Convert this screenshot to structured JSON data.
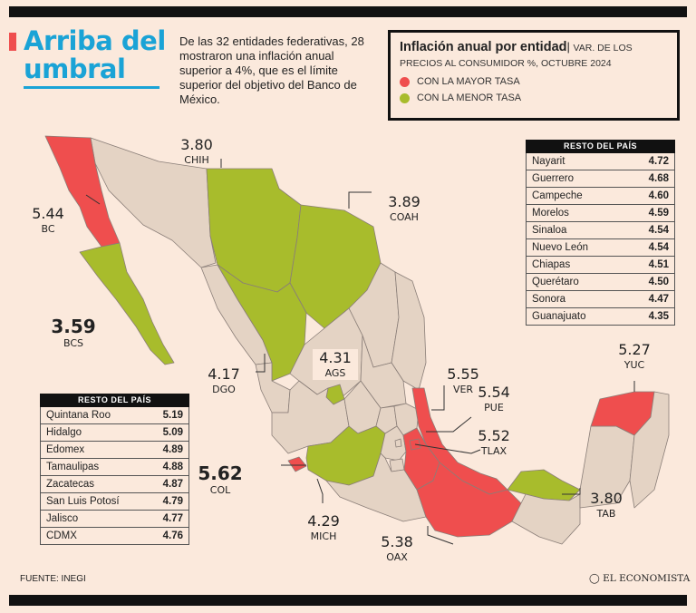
{
  "title": "Arriba del umbral",
  "intro": "De las 32 entidades federativas, 28 mostraron una inflación anual superior a 4%, que es el límite superior del objetivo del Banco de México.",
  "legend": {
    "title": "Inflación anual por entidad",
    "separator": "|",
    "subtitle": "VAR. DE LOS PRECIOS AL CONSUMIDOR %, OCTUBRE 2024",
    "items": [
      {
        "label": "CON LA MAYOR TASA",
        "color": "#ef4e4e"
      },
      {
        "label": "CON LA MENOR TASA",
        "color": "#a8bc2c"
      }
    ]
  },
  "colors": {
    "highest": "#ef4e4e",
    "lowest": "#a8bc2c",
    "rest": "#e4d3c4",
    "border": "#8a7e78",
    "accent": "#1aa3d6"
  },
  "map_labels": [
    {
      "id": "bc",
      "value": "5.44",
      "abbr": "BC",
      "big": false
    },
    {
      "id": "bcs",
      "value": "3.59",
      "abbr": "BCS",
      "big": true
    },
    {
      "id": "chih",
      "value": "3.80",
      "abbr": "CHIH",
      "big": false
    },
    {
      "id": "coah",
      "value": "3.89",
      "abbr": "COAH",
      "big": false
    },
    {
      "id": "dgo",
      "value": "4.17",
      "abbr": "DGO",
      "big": false
    },
    {
      "id": "ags",
      "value": "4.31",
      "abbr": "AGS",
      "big": false
    },
    {
      "id": "col",
      "value": "5.62",
      "abbr": "COL",
      "big": true
    },
    {
      "id": "mich",
      "value": "4.29",
      "abbr": "MICH",
      "big": false
    },
    {
      "id": "oax",
      "value": "5.38",
      "abbr": "OAX",
      "big": false
    },
    {
      "id": "ver",
      "value": "5.55",
      "abbr": "VER",
      "big": false
    },
    {
      "id": "pue",
      "value": "5.54",
      "abbr": "PUE",
      "big": false
    },
    {
      "id": "tlax",
      "value": "5.52",
      "abbr": "TLAX",
      "big": false
    },
    {
      "id": "yuc",
      "value": "5.27",
      "abbr": "YUC",
      "big": false
    },
    {
      "id": "tab",
      "value": "3.80",
      "abbr": "TAB",
      "big": false
    }
  ],
  "table_right": {
    "header": "RESTO DEL PAÍS",
    "rows": [
      {
        "name": "Nayarit",
        "value": "4.72"
      },
      {
        "name": "Guerrero",
        "value": "4.68"
      },
      {
        "name": "Campeche",
        "value": "4.60"
      },
      {
        "name": "Morelos",
        "value": "4.59"
      },
      {
        "name": "Sinaloa",
        "value": "4.54"
      },
      {
        "name": "Nuevo León",
        "value": "4.54"
      },
      {
        "name": "Chiapas",
        "value": "4.51"
      },
      {
        "name": "Querétaro",
        "value": "4.50"
      },
      {
        "name": "Sonora",
        "value": "4.47"
      },
      {
        "name": "Guanajuato",
        "value": "4.35"
      }
    ]
  },
  "table_left": {
    "header": "RESTO DEL PAÍS",
    "rows": [
      {
        "name": "Quintana Roo",
        "value": "5.19"
      },
      {
        "name": "Hidalgo",
        "value": "5.09"
      },
      {
        "name": "Edomex",
        "value": "4.89"
      },
      {
        "name": "Tamaulipas",
        "value": "4.88"
      },
      {
        "name": "Zacatecas",
        "value": "4.87"
      },
      {
        "name": "San Luis Potosí",
        "value": "4.79"
      },
      {
        "name": "Jalisco",
        "value": "4.77"
      },
      {
        "name": "CDMX",
        "value": "4.76"
      }
    ]
  },
  "source": "FUENTE: INEGI",
  "brand": "EL ECONOMISTA",
  "brand_icon": "globe-icon"
}
